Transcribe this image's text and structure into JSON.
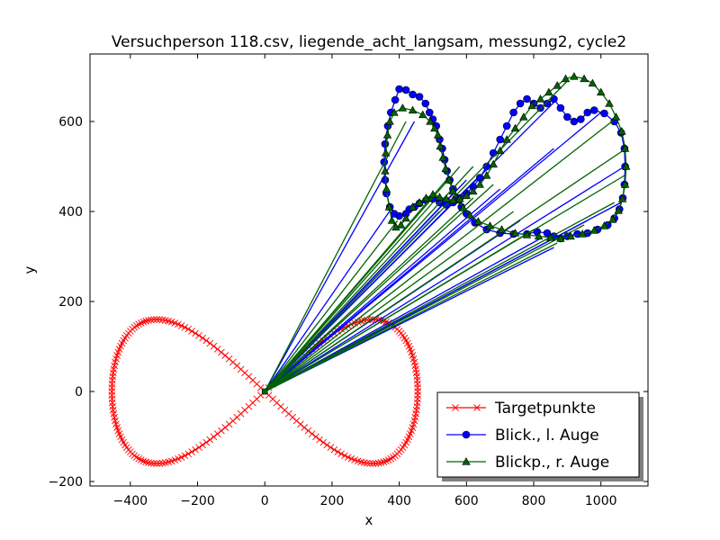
{
  "chart_data": {
    "type": "line",
    "title": "Versuchperson 118.csv, liegende_acht_langsam, messung2, cycle2",
    "xlabel": "x",
    "ylabel": "y",
    "xlim": [
      -520,
      1140
    ],
    "ylim": [
      -210,
      750
    ],
    "xticks": [
      -400,
      -200,
      0,
      200,
      400,
      600,
      800,
      1000
    ],
    "xtick_labels": [
      "−400",
      "−200",
      "0",
      "200",
      "400",
      "600",
      "800",
      "1000"
    ],
    "yticks": [
      -200,
      0,
      200,
      400,
      600
    ],
    "ytick_labels": [
      "−200",
      "0",
      "200",
      "400",
      "600"
    ],
    "grid": false,
    "legend_position": "lower-right",
    "origin": [
      0,
      0
    ],
    "series": [
      {
        "name": "Targetpunkte",
        "color": "#ff0000",
        "marker": "x",
        "figure_eight": {
          "center": [
            0,
            0
          ],
          "x_amplitude": 455,
          "y_amplitude": 160,
          "points": 240
        }
      },
      {
        "name": "Blick., l. Auge",
        "color": "#0000ff",
        "marker": "circle",
        "points": [
          [
            430,
            405
          ],
          [
            420,
            395
          ],
          [
            400,
            390
          ],
          [
            385,
            395
          ],
          [
            372,
            410
          ],
          [
            362,
            440
          ],
          [
            358,
            470
          ],
          [
            355,
            510
          ],
          [
            358,
            550
          ],
          [
            366,
            590
          ],
          [
            375,
            620
          ],
          [
            388,
            648
          ],
          [
            400,
            672
          ],
          [
            420,
            670
          ],
          [
            440,
            660
          ],
          [
            460,
            655
          ],
          [
            478,
            640
          ],
          [
            490,
            620
          ],
          [
            500,
            605
          ],
          [
            510,
            590
          ],
          [
            520,
            560
          ],
          [
            528,
            540
          ],
          [
            535,
            515
          ],
          [
            542,
            490
          ],
          [
            550,
            470
          ],
          [
            560,
            450
          ],
          [
            570,
            430
          ],
          [
            585,
            410
          ],
          [
            600,
            395
          ],
          [
            625,
            375
          ],
          [
            660,
            360
          ],
          [
            700,
            352
          ],
          [
            740,
            350
          ],
          [
            780,
            350
          ],
          [
            810,
            355
          ],
          [
            840,
            352
          ],
          [
            860,
            345
          ],
          [
            880,
            340
          ],
          [
            900,
            345
          ],
          [
            930,
            350
          ],
          [
            960,
            352
          ],
          [
            990,
            360
          ],
          [
            1020,
            370
          ],
          [
            1040,
            385
          ],
          [
            1055,
            405
          ],
          [
            1065,
            430
          ],
          [
            1070,
            460
          ],
          [
            1072,
            500
          ],
          [
            1070,
            540
          ],
          [
            1060,
            575
          ],
          [
            1040,
            600
          ],
          [
            1010,
            618
          ],
          [
            980,
            625
          ],
          [
            960,
            620
          ],
          [
            940,
            605
          ],
          [
            920,
            600
          ],
          [
            900,
            610
          ],
          [
            880,
            630
          ],
          [
            860,
            650
          ],
          [
            840,
            640
          ],
          [
            820,
            630
          ],
          [
            800,
            640
          ],
          [
            780,
            650
          ],
          [
            760,
            640
          ],
          [
            740,
            620
          ],
          [
            720,
            590
          ],
          [
            700,
            560
          ],
          [
            680,
            530
          ],
          [
            660,
            500
          ],
          [
            640,
            475
          ],
          [
            620,
            455
          ],
          [
            600,
            440
          ],
          [
            580,
            430
          ],
          [
            560,
            420
          ],
          [
            540,
            415
          ],
          [
            520,
            420
          ],
          [
            500,
            428
          ],
          [
            480,
            425
          ],
          [
            460,
            418
          ],
          [
            445,
            410
          ]
        ],
        "rays_to": [
          [
            380,
            410
          ],
          [
            445,
            600
          ],
          [
            520,
            400
          ],
          [
            560,
            440
          ],
          [
            600,
            470
          ],
          [
            640,
            480
          ],
          [
            700,
            450
          ],
          [
            760,
            380
          ],
          [
            820,
            340
          ],
          [
            860,
            320
          ],
          [
            960,
            380
          ],
          [
            1060,
            420
          ],
          [
            1070,
            500
          ],
          [
            1000,
            620
          ],
          [
            870,
            650
          ],
          [
            860,
            540
          ]
        ]
      },
      {
        "name": "Blickp., r. Auge",
        "color": "#006400",
        "marker": "triangle",
        "points": [
          [
            420,
            385
          ],
          [
            405,
            370
          ],
          [
            390,
            365
          ],
          [
            378,
            380
          ],
          [
            370,
            410
          ],
          [
            362,
            450
          ],
          [
            358,
            490
          ],
          [
            360,
            530
          ],
          [
            365,
            570
          ],
          [
            372,
            600
          ],
          [
            385,
            620
          ],
          [
            410,
            630
          ],
          [
            440,
            625
          ],
          [
            470,
            615
          ],
          [
            492,
            600
          ],
          [
            505,
            585
          ],
          [
            515,
            570
          ],
          [
            522,
            545
          ],
          [
            530,
            520
          ],
          [
            538,
            495
          ],
          [
            548,
            470
          ],
          [
            560,
            445
          ],
          [
            575,
            425
          ],
          [
            590,
            408
          ],
          [
            610,
            392
          ],
          [
            635,
            378
          ],
          [
            670,
            368
          ],
          [
            705,
            360
          ],
          [
            745,
            352
          ],
          [
            780,
            348
          ],
          [
            815,
            345
          ],
          [
            850,
            342
          ],
          [
            880,
            340
          ],
          [
            910,
            345
          ],
          [
            945,
            350
          ],
          [
            980,
            358
          ],
          [
            1010,
            368
          ],
          [
            1035,
            382
          ],
          [
            1052,
            402
          ],
          [
            1064,
            428
          ],
          [
            1072,
            460
          ],
          [
            1075,
            500
          ],
          [
            1072,
            540
          ],
          [
            1062,
            578
          ],
          [
            1045,
            610
          ],
          [
            1025,
            640
          ],
          [
            1000,
            665
          ],
          [
            975,
            685
          ],
          [
            950,
            695
          ],
          [
            920,
            700
          ],
          [
            895,
            695
          ],
          [
            870,
            680
          ],
          [
            845,
            665
          ],
          [
            820,
            650
          ],
          [
            795,
            635
          ],
          [
            770,
            610
          ],
          [
            745,
            585
          ],
          [
            720,
            560
          ],
          [
            700,
            535
          ],
          [
            680,
            505
          ],
          [
            660,
            480
          ],
          [
            640,
            460
          ],
          [
            620,
            445
          ],
          [
            600,
            435
          ],
          [
            580,
            428
          ],
          [
            560,
            425
          ],
          [
            540,
            428
          ],
          [
            520,
            432
          ],
          [
            500,
            438
          ],
          [
            480,
            430
          ],
          [
            460,
            420
          ],
          [
            440,
            410
          ]
        ],
        "rays_to": [
          [
            395,
            380
          ],
          [
            420,
            600
          ],
          [
            500,
            420
          ],
          [
            540,
            470
          ],
          [
            580,
            500
          ],
          [
            620,
            500
          ],
          [
            680,
            460
          ],
          [
            740,
            400
          ],
          [
            800,
            360
          ],
          [
            870,
            330
          ],
          [
            950,
            370
          ],
          [
            1040,
            420
          ],
          [
            1070,
            480
          ],
          [
            1075,
            540
          ],
          [
            1050,
            610
          ],
          [
            900,
            690
          ],
          [
            620,
            430
          ]
        ]
      }
    ],
    "legend": [
      {
        "label": "Targetpunkte",
        "color": "#ff0000",
        "marker": "x"
      },
      {
        "label": "Blick., l. Auge",
        "color": "#0000ff",
        "marker": "circle"
      },
      {
        "label": "Blickp., r. Auge",
        "color": "#006400",
        "marker": "triangle"
      }
    ]
  }
}
